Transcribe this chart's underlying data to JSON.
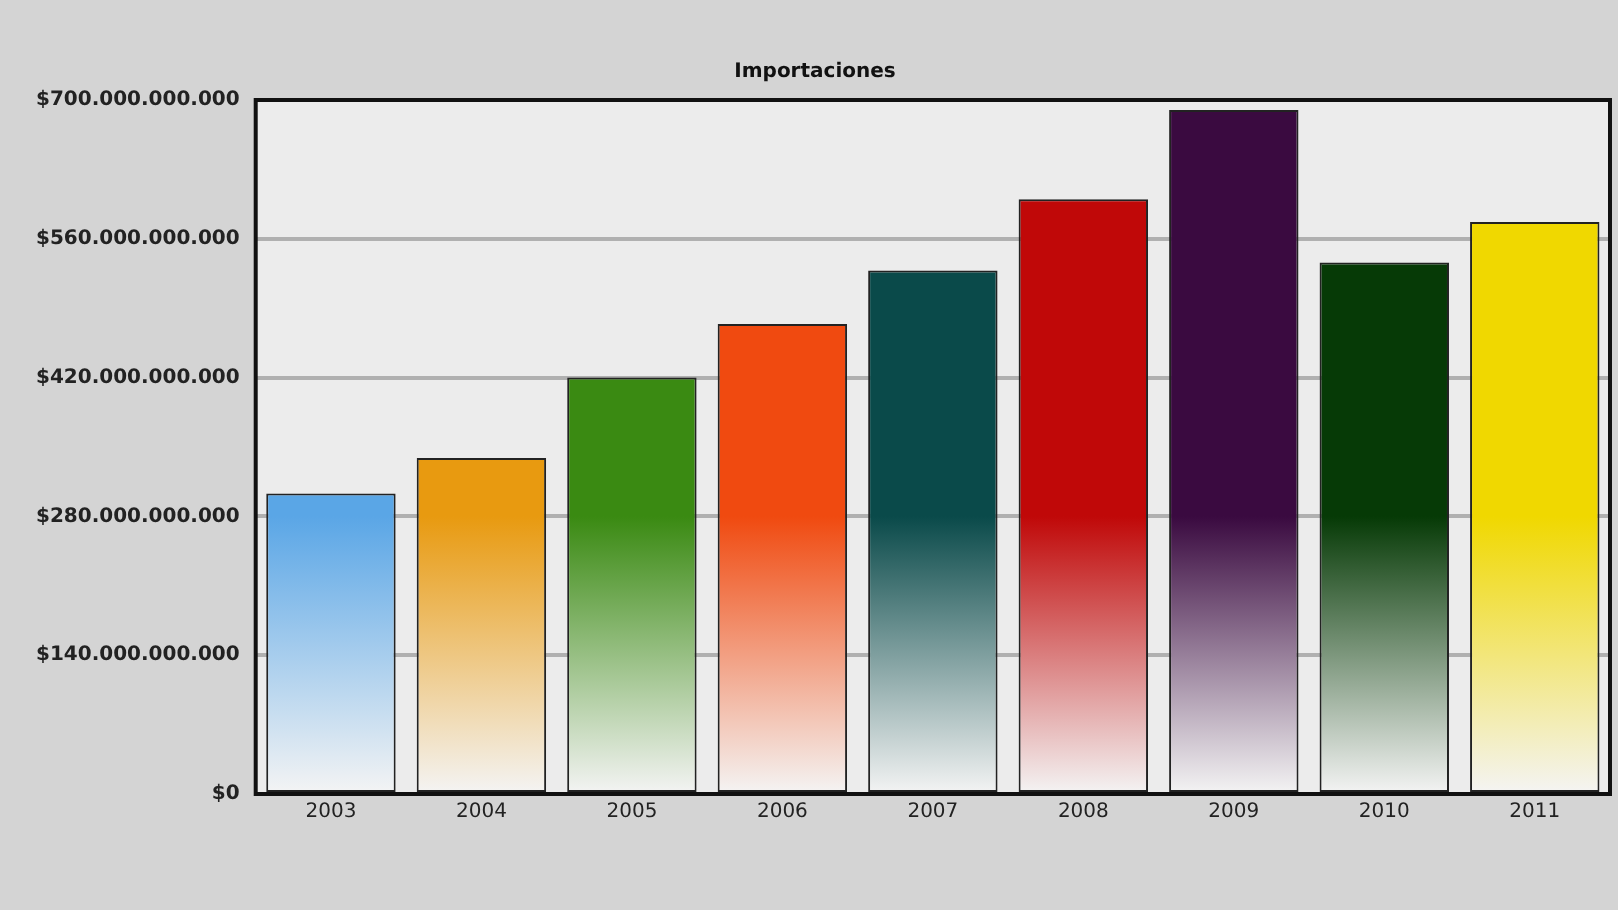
{
  "chart_data": {
    "type": "bar",
    "title": "Importaciones",
    "categories": [
      "2003",
      "2004",
      "2005",
      "2006",
      "2007",
      "2008",
      "2009",
      "2010",
      "2011"
    ],
    "values": [
      303000000000,
      339000000000,
      420000000000,
      474000000000,
      528000000000,
      600000000000,
      690000000000,
      536000000000,
      577000000000
    ],
    "colors": [
      "#5aa6e6",
      "#e89a10",
      "#3a8a12",
      "#f04a10",
      "#0a4a4a",
      "#c00808",
      "#3a0a40",
      "#063a06",
      "#f0d800"
    ],
    "ylim": [
      0,
      700000000000
    ],
    "yticks": [
      {
        "value": 0,
        "label": "$0"
      },
      {
        "value": 140000000000,
        "label": "$140.000.000.000"
      },
      {
        "value": 280000000000,
        "label": "$280.000.000.000"
      },
      {
        "value": 420000000000,
        "label": "$420.000.000.000"
      },
      {
        "value": 560000000000,
        "label": "$560.000.000.000"
      },
      {
        "value": 700000000000,
        "label": "$700.000.000.000"
      }
    ],
    "grid": "y",
    "legend": false
  }
}
